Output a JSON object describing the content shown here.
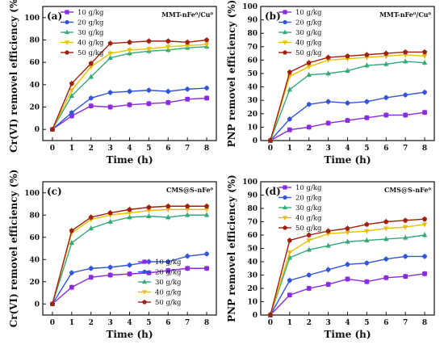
{
  "chart_data": [
    {
      "type": "line",
      "panel_label": "(a)",
      "material": "MMT-nFe⁰/Cu⁰",
      "xlabel": "Time (h)",
      "ylabel": "Cr(VI) removel efficiency (%)",
      "x": [
        0,
        1,
        2,
        3,
        4,
        5,
        6,
        7,
        8
      ],
      "xlim": [
        -0.5,
        8.5
      ],
      "ylim": [
        -10,
        110
      ],
      "yticks": [
        0,
        20,
        40,
        60,
        80,
        100
      ],
      "legend_position": "top-left",
      "series": [
        {
          "name": "10 g/kg",
          "color": "#8a2be2",
          "marker": "square",
          "values": [
            0,
            12,
            21,
            20,
            22,
            23,
            24,
            27,
            28
          ]
        },
        {
          "name": "20 g/kg",
          "color": "#3355dd",
          "marker": "circle",
          "values": [
            0,
            15,
            28,
            33,
            34,
            35,
            34,
            36,
            37
          ]
        },
        {
          "name": "30 g/kg",
          "color": "#33aa77",
          "marker": "triangle",
          "values": [
            0,
            30,
            47,
            64,
            68,
            70,
            71,
            73,
            74
          ]
        },
        {
          "name": "40 g/kg",
          "color": "#e8c000",
          "marker": "triangle-down",
          "values": [
            0,
            35,
            56,
            68,
            71,
            72,
            74,
            75,
            76
          ]
        },
        {
          "name": "50 g/kg",
          "color": "#a02010",
          "marker": "pentagon",
          "values": [
            0,
            41,
            59,
            77,
            78,
            79,
            79,
            78,
            80
          ]
        }
      ]
    },
    {
      "type": "line",
      "panel_label": "(b)",
      "material": "MMT-nFe⁰/Cu⁰",
      "xlabel": "Time (h)",
      "ylabel": "PNP removel efficiency (%)",
      "x": [
        0,
        1,
        2,
        3,
        4,
        5,
        6,
        7,
        8
      ],
      "xlim": [
        -0.5,
        8.5
      ],
      "ylim": [
        0,
        100
      ],
      "yticks": [
        0,
        10,
        20,
        30,
        40,
        50,
        60,
        70,
        80,
        90,
        100
      ],
      "legend_position": "top-left",
      "series": [
        {
          "name": "10 g/kg",
          "color": "#8a2be2",
          "marker": "square",
          "values": [
            0,
            8,
            10,
            13,
            15,
            17,
            19,
            19,
            21
          ]
        },
        {
          "name": "20 g/kg",
          "color": "#3355dd",
          "marker": "circle",
          "values": [
            0,
            16,
            27,
            29,
            28,
            29,
            32,
            34,
            36
          ]
        },
        {
          "name": "30 g/kg",
          "color": "#33aa77",
          "marker": "triangle",
          "values": [
            0,
            38,
            49,
            50,
            52,
            56,
            57,
            59,
            58
          ]
        },
        {
          "name": "40 g/kg",
          "color": "#e8c000",
          "marker": "triangle-down",
          "values": [
            0,
            48,
            55,
            60,
            61,
            62,
            63,
            64,
            63
          ]
        },
        {
          "name": "50 g/kg",
          "color": "#a02010",
          "marker": "pentagon",
          "values": [
            0,
            51,
            58,
            62,
            63,
            64,
            65,
            66,
            66
          ]
        }
      ]
    },
    {
      "type": "line",
      "panel_label": "(c)",
      "material": "CMS@S-nFe⁰",
      "xlabel": "Time (h)",
      "ylabel": "Cr(VI) removel efficiency (%)",
      "x": [
        0,
        1,
        2,
        3,
        4,
        5,
        6,
        7,
        8
      ],
      "xlim": [
        -0.5,
        8.5
      ],
      "ylim": [
        -10,
        110
      ],
      "yticks": [
        0,
        20,
        40,
        60,
        80,
        100
      ],
      "legend_position": "bottom-right",
      "series": [
        {
          "name": "10 g/kg",
          "color": "#8a2be2",
          "marker": "square",
          "values": [
            0,
            15,
            24,
            26,
            27,
            28,
            30,
            32,
            32
          ]
        },
        {
          "name": "20 g/kg",
          "color": "#3355dd",
          "marker": "circle",
          "values": [
            0,
            28,
            32,
            33,
            35,
            38,
            38,
            43,
            45
          ]
        },
        {
          "name": "30 g/kg",
          "color": "#33aa77",
          "marker": "triangle",
          "values": [
            0,
            55,
            68,
            74,
            78,
            79,
            78,
            80,
            80
          ]
        },
        {
          "name": "40 g/kg",
          "color": "#e8c000",
          "marker": "triangle-down",
          "values": [
            0,
            64,
            76,
            80,
            82,
            84,
            85,
            85,
            85
          ]
        },
        {
          "name": "50 g/kg",
          "color": "#a02010",
          "marker": "pentagon",
          "values": [
            0,
            66,
            78,
            82,
            85,
            87,
            88,
            88,
            88
          ]
        }
      ]
    },
    {
      "type": "line",
      "panel_label": "(d)",
      "material": "CMS@S-nFe⁰",
      "xlabel": "Time (h)",
      "ylabel": "PNP removel efficiency (%)",
      "x": [
        0,
        1,
        2,
        3,
        4,
        5,
        6,
        7,
        8
      ],
      "xlim": [
        -0.5,
        8.5
      ],
      "ylim": [
        0,
        100
      ],
      "yticks": [
        0,
        10,
        20,
        30,
        40,
        50,
        60,
        70,
        80,
        90,
        100
      ],
      "legend_position": "top-left",
      "series": [
        {
          "name": "10 g/kg",
          "color": "#8a2be2",
          "marker": "square",
          "values": [
            0,
            15,
            20,
            23,
            27,
            25,
            28,
            29,
            31
          ]
        },
        {
          "name": "20 g/kg",
          "color": "#3355dd",
          "marker": "circle",
          "values": [
            0,
            26,
            30,
            34,
            38,
            39,
            42,
            44,
            44
          ]
        },
        {
          "name": "30 g/kg",
          "color": "#33aa77",
          "marker": "triangle",
          "values": [
            0,
            43,
            49,
            52,
            55,
            56,
            57,
            58,
            60
          ]
        },
        {
          "name": "40 g/kg",
          "color": "#e8c000",
          "marker": "triangle-down",
          "values": [
            0,
            47,
            56,
            61,
            62,
            63,
            65,
            66,
            68
          ]
        },
        {
          "name": "50 g/kg",
          "color": "#a02010",
          "marker": "pentagon",
          "values": [
            0,
            56,
            60,
            63,
            65,
            68,
            70,
            71,
            72
          ]
        }
      ]
    }
  ]
}
